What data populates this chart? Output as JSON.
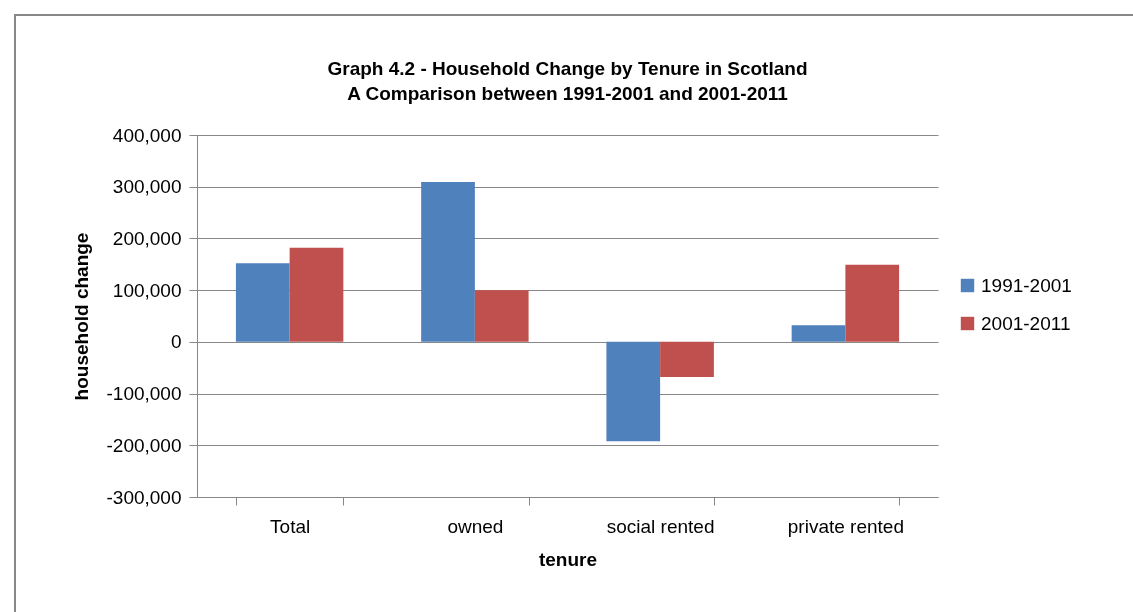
{
  "chart_data": {
    "type": "bar",
    "title": "Graph 4.2 - Household Change by Tenure in Scotland",
    "subtitle": "A Comparison between 1991-2001 and 2001-2011",
    "xlabel": "tenure",
    "ylabel": "household change",
    "categories": [
      "Total",
      "owned",
      "social rented",
      "private rented"
    ],
    "series": [
      {
        "name": "1991-2001",
        "color": "#4f81bd",
        "values": [
          152000,
          309000,
          -192000,
          32000
        ]
      },
      {
        "name": "2001-2011",
        "color": "#c0504d",
        "values": [
          182000,
          100000,
          -68000,
          149000
        ]
      }
    ],
    "ylim": [
      -300000,
      400000
    ],
    "yticks": [
      {
        "value": -300000,
        "label": "-300,000"
      },
      {
        "value": -200000,
        "label": "-200,000"
      },
      {
        "value": -100000,
        "label": "-100,000"
      },
      0,
      {
        "value": 100000,
        "label": "100,000"
      },
      {
        "value": 200000,
        "label": "200,000"
      },
      {
        "value": 300000,
        "label": "300,000"
      },
      {
        "value": 400000,
        "label": "400,000"
      }
    ],
    "grid": "y",
    "legend": "right"
  }
}
